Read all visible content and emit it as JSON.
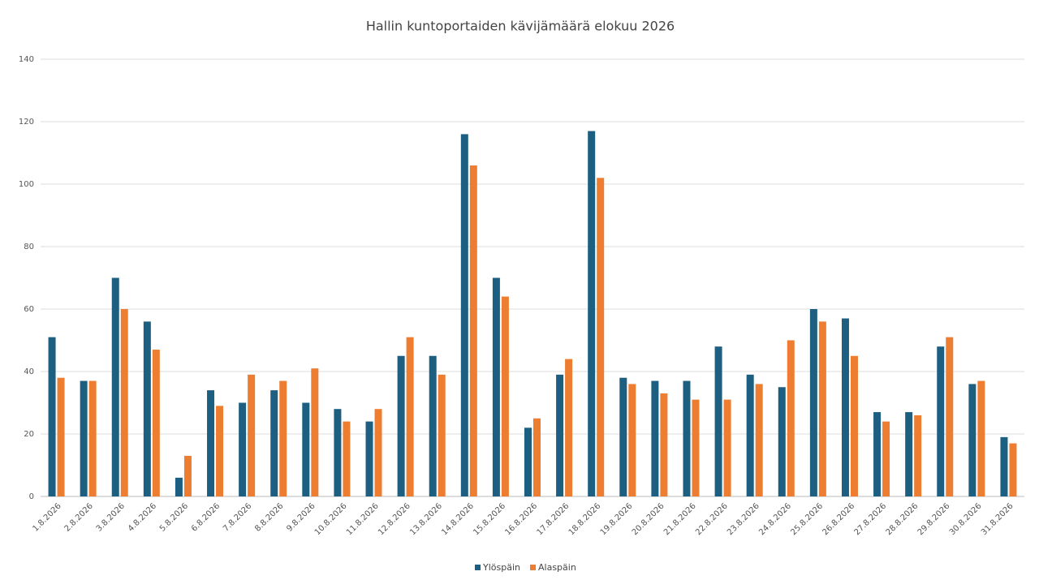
{
  "chart_data": {
    "type": "bar",
    "title": "Hallin kuntoportaiden kävijämäärä elokuu 2026",
    "categories": [
      "1.8.2026",
      "2.8.2026",
      "3.8.2026",
      "4.8.2026",
      "5.8.2026",
      "6.8.2026",
      "7.8.2026",
      "8.8.2026",
      "9.8.2026",
      "10.8.2026",
      "11.8.2026",
      "12.8.2026",
      "13.8.2026",
      "14.8.2026",
      "15.8.2026",
      "16.8.2026",
      "17.8.2026",
      "18.8.2026",
      "19.8.2026",
      "20.8.2026",
      "21.8.2026",
      "22.8.2026",
      "23.8.2026",
      "24.8.2026",
      "25.8.2026",
      "26.8.2026",
      "27.8.2026",
      "28.8.2026",
      "29.8.2026",
      "30.8.2026",
      "31.8.2026"
    ],
    "series": [
      {
        "name": "Ylöspäin",
        "color": "#1d5f80",
        "values": [
          51,
          37,
          70,
          56,
          6,
          34,
          30,
          34,
          30,
          28,
          24,
          45,
          45,
          116,
          70,
          22,
          39,
          117,
          38,
          37,
          37,
          48,
          39,
          35,
          60,
          57,
          27,
          27,
          48,
          36,
          19
        ]
      },
      {
        "name": "Alaspäin",
        "color": "#ed7d31",
        "values": [
          38,
          37,
          60,
          47,
          13,
          29,
          39,
          37,
          41,
          24,
          28,
          51,
          39,
          106,
          64,
          25,
          44,
          102,
          36,
          33,
          31,
          31,
          36,
          50,
          56,
          45,
          24,
          26,
          51,
          37,
          17
        ]
      }
    ],
    "ylim": [
      0,
      140
    ],
    "yticks": [
      0,
      20,
      40,
      60,
      80,
      100,
      120,
      140
    ],
    "grid": true,
    "legend": "bottom"
  }
}
